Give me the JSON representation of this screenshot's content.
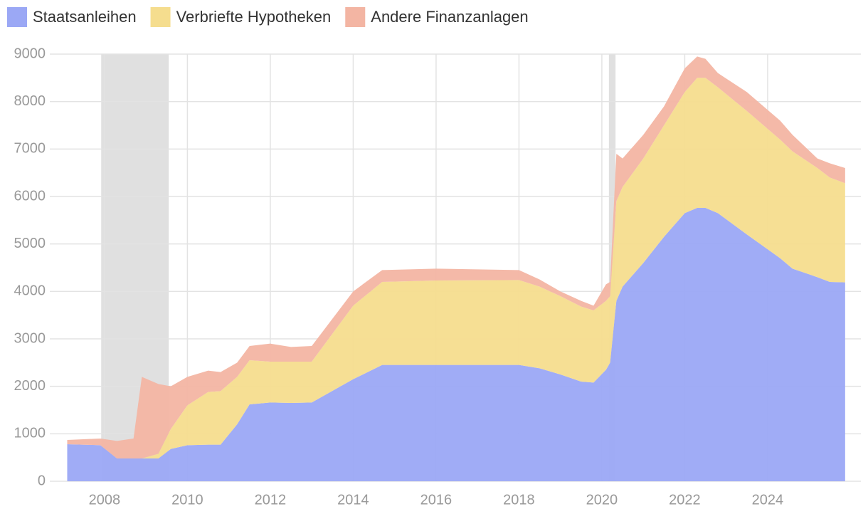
{
  "chart_data": {
    "type": "stacked-area",
    "x": [
      2007.1,
      2007.9,
      2008.3,
      2008.7,
      2008.9,
      2009.3,
      2009.6,
      2010,
      2010.5,
      2010.8,
      2011.2,
      2011.5,
      2012,
      2012.5,
      2013,
      2014,
      2014.7,
      2016,
      2018,
      2018.5,
      2019,
      2019.5,
      2019.8,
      2020.1,
      2020.2,
      2020.35,
      2020.5,
      2021,
      2021.5,
      2022,
      2022.3,
      2022.5,
      2022.8,
      2023.5,
      2024.3,
      2024.6,
      2025.2,
      2025.5,
      2025.87
    ],
    "series": [
      {
        "name": "Staatsanleihen",
        "color": "#9ba8f5",
        "values": [
          780,
          760,
          480,
          480,
          480,
          480,
          680,
          760,
          770,
          770,
          1200,
          1620,
          1660,
          1650,
          1660,
          2150,
          2450,
          2450,
          2450,
          2380,
          2250,
          2100,
          2080,
          2350,
          2500,
          3800,
          4100,
          4600,
          5150,
          5650,
          5760,
          5760,
          5650,
          5200,
          4700,
          4480,
          4300,
          4200,
          4190
        ]
      },
      {
        "name": "Verbriefte Hypotheken",
        "color": "#f5dd8e",
        "values": [
          0,
          0,
          0,
          0,
          0,
          100,
          420,
          840,
          1110,
          1130,
          1000,
          930,
          860,
          870,
          860,
          1550,
          1750,
          1780,
          1790,
          1720,
          1650,
          1580,
          1520,
          1450,
          1400,
          2100,
          2100,
          2200,
          2350,
          2550,
          2740,
          2740,
          2650,
          2600,
          2500,
          2470,
          2300,
          2200,
          2090
        ]
      },
      {
        "name": "Andere Finanzanlagen",
        "color": "#f3b5a3",
        "values": [
          90,
          140,
          370,
          420,
          1720,
          1470,
          900,
          600,
          450,
          400,
          300,
          300,
          380,
          310,
          330,
          300,
          250,
          250,
          210,
          150,
          100,
          120,
          100,
          350,
          300,
          1000,
          600,
          500,
          400,
          500,
          450,
          400,
          300,
          400,
          400,
          350,
          200,
          300,
          320
        ]
      }
    ],
    "shaded_periods": [
      [
        2007.92,
        2009.55
      ],
      [
        2020.17,
        2020.33
      ]
    ],
    "shade_color": "#e0e0e0",
    "xlim": [
      2006.68,
      2026.25
    ],
    "xticks": [
      2008,
      2010,
      2012,
      2014,
      2016,
      2018,
      2020,
      2022,
      2024
    ],
    "ylim": [
      0,
      9000
    ],
    "yticks": [
      0,
      1000,
      2000,
      3000,
      4000,
      5000,
      6000,
      7000,
      8000,
      9000
    ],
    "grid": true
  }
}
